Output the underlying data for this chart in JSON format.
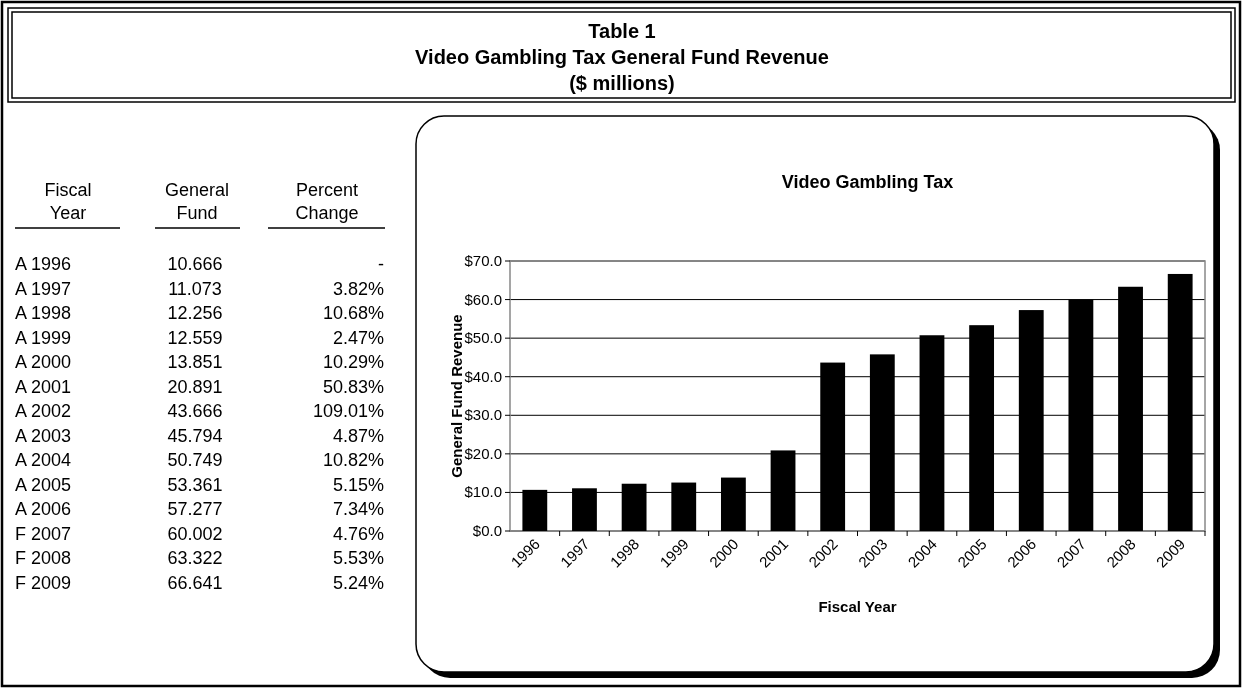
{
  "chart_data": [
    {
      "type": "other",
      "title": "Table 1",
      "subtitle": "Video Gambling Tax General Fund Revenue",
      "annotations": [
        "($ millions)",
        "Fiscal Year",
        "General Fund",
        "Percent Change",
        "A 1996",
        "10.666",
        "-",
        "A 1997",
        "11.073",
        "3.82%",
        "A 1998",
        "12.256",
        "10.68%",
        "A 1999",
        "12.559",
        "2.47%",
        "A 2000",
        "13.851",
        "10.29%",
        "A 2001",
        "20.891",
        "50.83%",
        "A 2002",
        "43.666",
        "109.01%",
        "A 2003",
        "45.794",
        "4.87%",
        "A 2004",
        "50.749",
        "10.82%",
        "A 2005",
        "53.361",
        "5.15%",
        "A 2006",
        "57.277",
        "7.34%",
        "F 2007",
        "60.002",
        "4.76%",
        "F 2008",
        "63.322",
        "5.53%",
        "F 2009",
        "66.641",
        "5.24%"
      ]
    },
    {
      "type": "bar",
      "title": "Video Gambling Tax",
      "xlabel": "Fiscal Year",
      "ylabel": "General Fund Revenue",
      "categories": [
        "1996",
        "1997",
        "1998",
        "1999",
        "2000",
        "2001",
        "2002",
        "2003",
        "2004",
        "2005",
        "2006",
        "2007",
        "2008",
        "2009"
      ],
      "values": [
        10.666,
        11.073,
        12.256,
        12.559,
        13.851,
        20.891,
        43.666,
        45.794,
        50.749,
        53.361,
        57.277,
        60.002,
        63.322,
        66.641
      ],
      "color": "#000000",
      "ylim": [
        0,
        70
      ],
      "yticks": [
        {
          "value": 0,
          "label": "$0.0"
        },
        {
          "value": 10,
          "label": "$10.0"
        },
        {
          "value": 20,
          "label": "$20.0"
        },
        {
          "value": 30,
          "label": "$30.0"
        },
        {
          "value": 40,
          "label": "$40.0"
        },
        {
          "value": 50,
          "label": "$50.0"
        },
        {
          "value": 60,
          "label": "$60.0"
        },
        {
          "value": 70,
          "label": "$70.0"
        }
      ],
      "grid": "y"
    }
  ]
}
